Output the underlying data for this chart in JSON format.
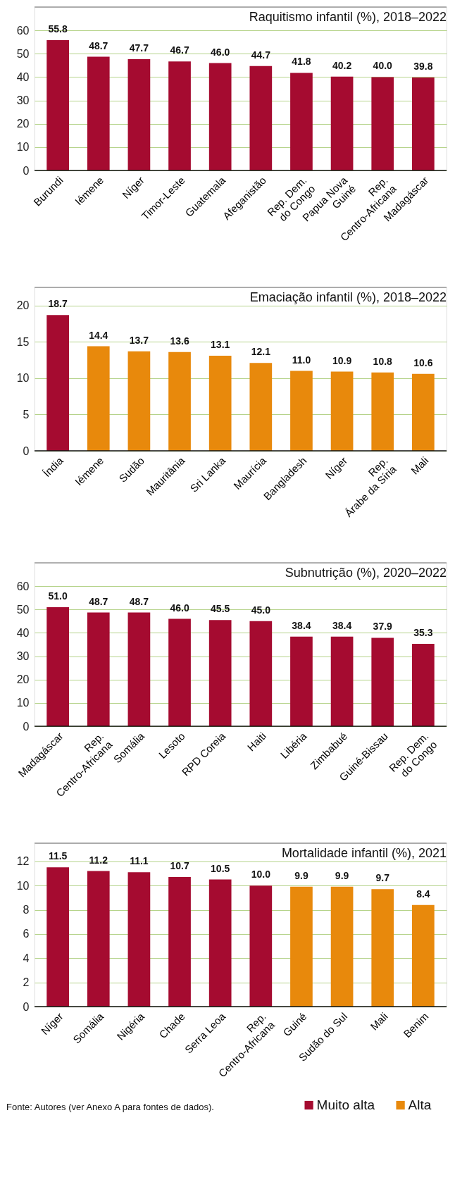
{
  "chart_data": [
    {
      "type": "bar",
      "title": "Raquitismo infantil (%), 2018–2022",
      "categories": [
        "Burundi",
        "Iémene",
        "Níger",
        "Timor-Leste",
        "Guatemala",
        "Afeganistão",
        "Rep. Dem.\ndo Congo",
        "Papua Nova\nGuiné",
        "Rep.\nCentro-Africana",
        "Madagáscar"
      ],
      "values": [
        55.8,
        48.7,
        47.7,
        46.7,
        46.0,
        44.7,
        41.8,
        40.2,
        40.0,
        39.8
      ],
      "value_labels": [
        "55.8",
        "48.7",
        "47.7",
        "46.7",
        "46.0",
        "44.7",
        "41.8",
        "40.2",
        "40.0",
        "39.8"
      ],
      "colors": [
        "#a50b30",
        "#a50b30",
        "#a50b30",
        "#a50b30",
        "#a50b30",
        "#a50b30",
        "#a50b30",
        "#a50b30",
        "#a50b30",
        "#a50b30"
      ],
      "ylim": [
        0,
        70
      ],
      "yticks": [
        0,
        10,
        20,
        30,
        40,
        50,
        60
      ],
      "grid": "y"
    },
    {
      "type": "bar",
      "title": "Emaciação infantil (%), 2018–2022",
      "categories": [
        "Índia",
        "Iémene",
        "Sudão",
        "Mauritânia",
        "Sri Lanka",
        "Maurícia",
        "Bangladesh",
        "Níger",
        "Rep.\nÁrabe da Síria",
        "Mali"
      ],
      "values": [
        18.7,
        14.4,
        13.7,
        13.6,
        13.1,
        12.1,
        11.0,
        10.9,
        10.8,
        10.6
      ],
      "value_labels": [
        "18.7",
        "14.4",
        "13.7",
        "13.6",
        "13.1",
        "12.1",
        "11.0",
        "10.9",
        "10.8",
        "10.6"
      ],
      "colors": [
        "#a50b30",
        "#e8890c",
        "#e8890c",
        "#e8890c",
        "#e8890c",
        "#e8890c",
        "#e8890c",
        "#e8890c",
        "#e8890c",
        "#e8890c"
      ],
      "ylim": [
        0,
        22.5
      ],
      "yticks": [
        0,
        5,
        10,
        15,
        20
      ],
      "grid": "y"
    },
    {
      "type": "bar",
      "title": "Subnutrição (%), 2020–2022",
      "categories": [
        "Madagáscar",
        "Rep.\nCentro-Africana",
        "Somália",
        "Lesoto",
        "RPD Coreia",
        "Haiti",
        "Libéria",
        "Zimbabué",
        "Guiné-Bissau",
        "Rep. Dem.\ndo Congo"
      ],
      "values": [
        51.0,
        48.7,
        48.7,
        46.0,
        45.5,
        45.0,
        38.4,
        38.4,
        37.9,
        35.3
      ],
      "value_labels": [
        "51.0",
        "48.7",
        "48.7",
        "46.0",
        "45.5",
        "45.0",
        "38.4",
        "38.4",
        "37.9",
        "35.3"
      ],
      "colors": [
        "#a50b30",
        "#a50b30",
        "#a50b30",
        "#a50b30",
        "#a50b30",
        "#a50b30",
        "#a50b30",
        "#a50b30",
        "#a50b30",
        "#a50b30"
      ],
      "ylim": [
        0,
        70
      ],
      "yticks": [
        0,
        10,
        20,
        30,
        40,
        50,
        60
      ],
      "grid": "y"
    },
    {
      "type": "bar",
      "title": "Mortalidade infantil (%), 2021",
      "categories": [
        "Níger",
        "Somália",
        "Nigéria",
        "Chade",
        "Serra Leoa",
        "Rep.\nCentro-Africana",
        "Guiné",
        "Sudão do Sul",
        "Mali",
        "Benim"
      ],
      "series": [
        {
          "name": "Muito alta",
          "color": "#a50b30",
          "values": [
            11.5,
            11.2,
            11.1,
            10.7,
            10.5,
            10.0,
            null,
            null,
            null,
            null
          ],
          "value_labels": [
            "11.5",
            "11.2",
            "11.1",
            "10.7",
            "10.5",
            "10.0",
            null,
            null,
            null,
            null
          ]
        },
        {
          "name": "Alta",
          "color": "#e8890c",
          "values": [
            null,
            null,
            null,
            null,
            null,
            null,
            9.9,
            9.9,
            9.7,
            8.4
          ],
          "value_labels": [
            null,
            null,
            null,
            null,
            null,
            null,
            "9.9",
            "9.9",
            "9.7",
            "8.4"
          ]
        }
      ],
      "stacked": true,
      "ylim": [
        0,
        13.5
      ],
      "yticks": [
        0,
        2,
        4,
        6,
        8,
        10,
        12
      ],
      "grid": "y",
      "legend": "bottom right",
      "annotations": [
        "Fonte: Autores (ver Anexo A para fontes de dados)."
      ]
    }
  ]
}
